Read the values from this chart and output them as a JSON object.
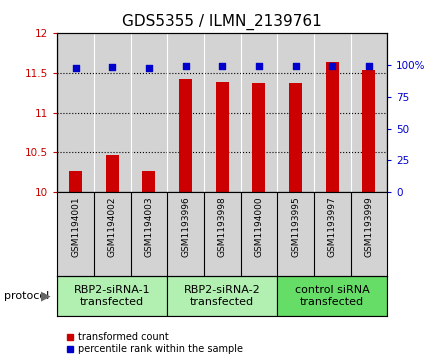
{
  "title": "GDS5355 / ILMN_2139761",
  "samples": [
    "GSM1194001",
    "GSM1194002",
    "GSM1194003",
    "GSM1193996",
    "GSM1193998",
    "GSM1194000",
    "GSM1193995",
    "GSM1193997",
    "GSM1193999"
  ],
  "bar_values": [
    10.27,
    10.47,
    10.27,
    11.42,
    11.38,
    11.37,
    11.37,
    11.63,
    11.53
  ],
  "percentile_values": [
    97,
    98,
    97,
    99,
    99,
    99,
    99,
    99,
    99
  ],
  "groups": [
    {
      "label": "RBP2-siRNA-1\ntransfected",
      "start": 0,
      "end": 3
    },
    {
      "label": "RBP2-siRNA-2\ntransfected",
      "start": 3,
      "end": 6
    },
    {
      "label": "control siRNA\ntransfected",
      "start": 6,
      "end": 9
    }
  ],
  "group_colors": [
    "#b2f0b2",
    "#b2f0b2",
    "#66dd66"
  ],
  "ylim": [
    10.0,
    12.0
  ],
  "yticks_left": [
    10.0,
    10.5,
    11.0,
    11.5,
    12.0
  ],
  "yticks_right": [
    0,
    25,
    50,
    75,
    100
  ],
  "bar_color": "#CC0000",
  "dot_color": "#0000CC",
  "plot_bg_color": "#d3d3d3",
  "title_fontsize": 11,
  "tick_fontsize": 7.5,
  "sample_fontsize": 6.5,
  "group_fontsize": 8,
  "legend_fontsize": 7,
  "bar_width": 0.35
}
